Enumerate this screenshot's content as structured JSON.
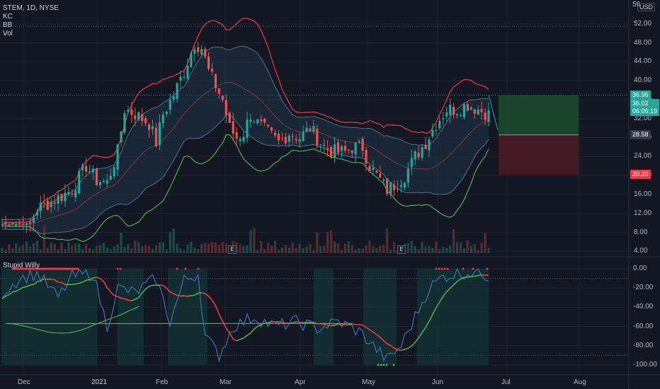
{
  "header": {
    "symbol_line": "STEM, 1D, NYSE",
    "indicators": [
      "KC",
      "BB",
      "Vol"
    ],
    "currency": "USD"
  },
  "price_axis": {
    "ticks": [
      "56",
      "52.00",
      "48.00",
      "44.00",
      "40.00",
      "36.00",
      "32.00",
      "28.00",
      "24.00",
      "20.00",
      "16.00",
      "12.00",
      "8.00",
      "4.00"
    ],
    "tags": [
      {
        "label": "36.96",
        "color": "#26a69a"
      },
      {
        "label": "36.02\n06:06:19",
        "color": "#26a69a"
      },
      {
        "label": "28.58",
        "color": "#363a45"
      },
      {
        "label": "20.20",
        "color": "#f23645"
      }
    ]
  },
  "oscillator": {
    "name": "Stupid Willy",
    "ticks": [
      "0.00",
      "-20.00",
      "-40.00",
      "-60.00",
      "-80.00",
      "-100.00"
    ]
  },
  "time_axis": {
    "labels": [
      "Dec",
      "2021",
      "Feb",
      "Mar",
      "Apr",
      "May",
      "Jun",
      "Jul",
      "Aug"
    ]
  },
  "earnings": [
    "E",
    "E"
  ],
  "colors": {
    "bull": "#26a69a",
    "bear": "#ef5350",
    "bb_upper": "#f23645",
    "bb_lower": "#4caf50",
    "kc": "#5b6b8a",
    "willy": "#3f6fb5",
    "signal_green": "#4caf50",
    "signal_red": "#f23645"
  }
}
